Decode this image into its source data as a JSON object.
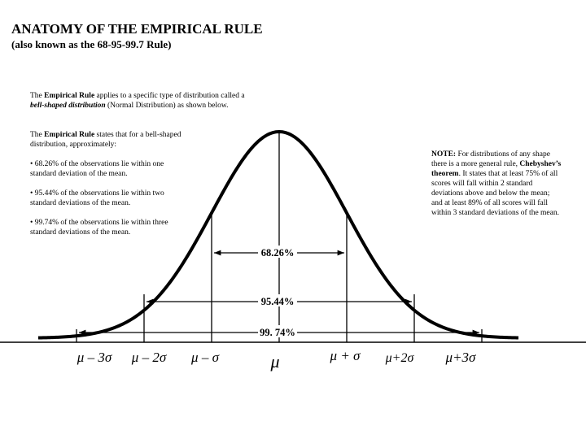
{
  "title": "ANATOMY OF THE EMPIRICAL RULE",
  "subtitle": "(also known as the 68-95-99.7 Rule)",
  "intro": {
    "pre": "The ",
    "term": "Empirical Rule",
    "mid": " applies to a specific type of distribution called a",
    "term2": "bell-shaped distribution",
    "post": " (Normal Distribution) as shown below."
  },
  "rule_statement": {
    "pre": "The ",
    "term": "Empirical Rule",
    "post": " states that for a bell-shaped distribution, approximately:"
  },
  "bullets": [
    "•  68.26% of the observations lie within one standard deviation of the mean.",
    "•  95.44% of the observations lie within two standard deviations of the mean.",
    "•  99.74% of the observations lie within three standard deviations of the mean."
  ],
  "note": {
    "label": "NOTE:",
    "text1": " For distributions of any shape there is a more general rule, ",
    "term": "Chebyshev’s theorem",
    "text2": ".   It states that at least 75% of all scores will fall within 2 standard deviations above and below the mean; and at least 89% of all scores will fall within 3 standard deviations of the mean."
  },
  "intervals": [
    {
      "label": "68.26%",
      "k": 1
    },
    {
      "label": "95.44%",
      "k": 2
    },
    {
      "label": "99. 74%",
      "k": 3
    }
  ],
  "axis_labels": [
    "μ – 3σ",
    "μ – 2σ",
    "μ – σ",
    "μ",
    "μ + σ",
    "μ+2σ",
    "μ+3σ"
  ]
}
